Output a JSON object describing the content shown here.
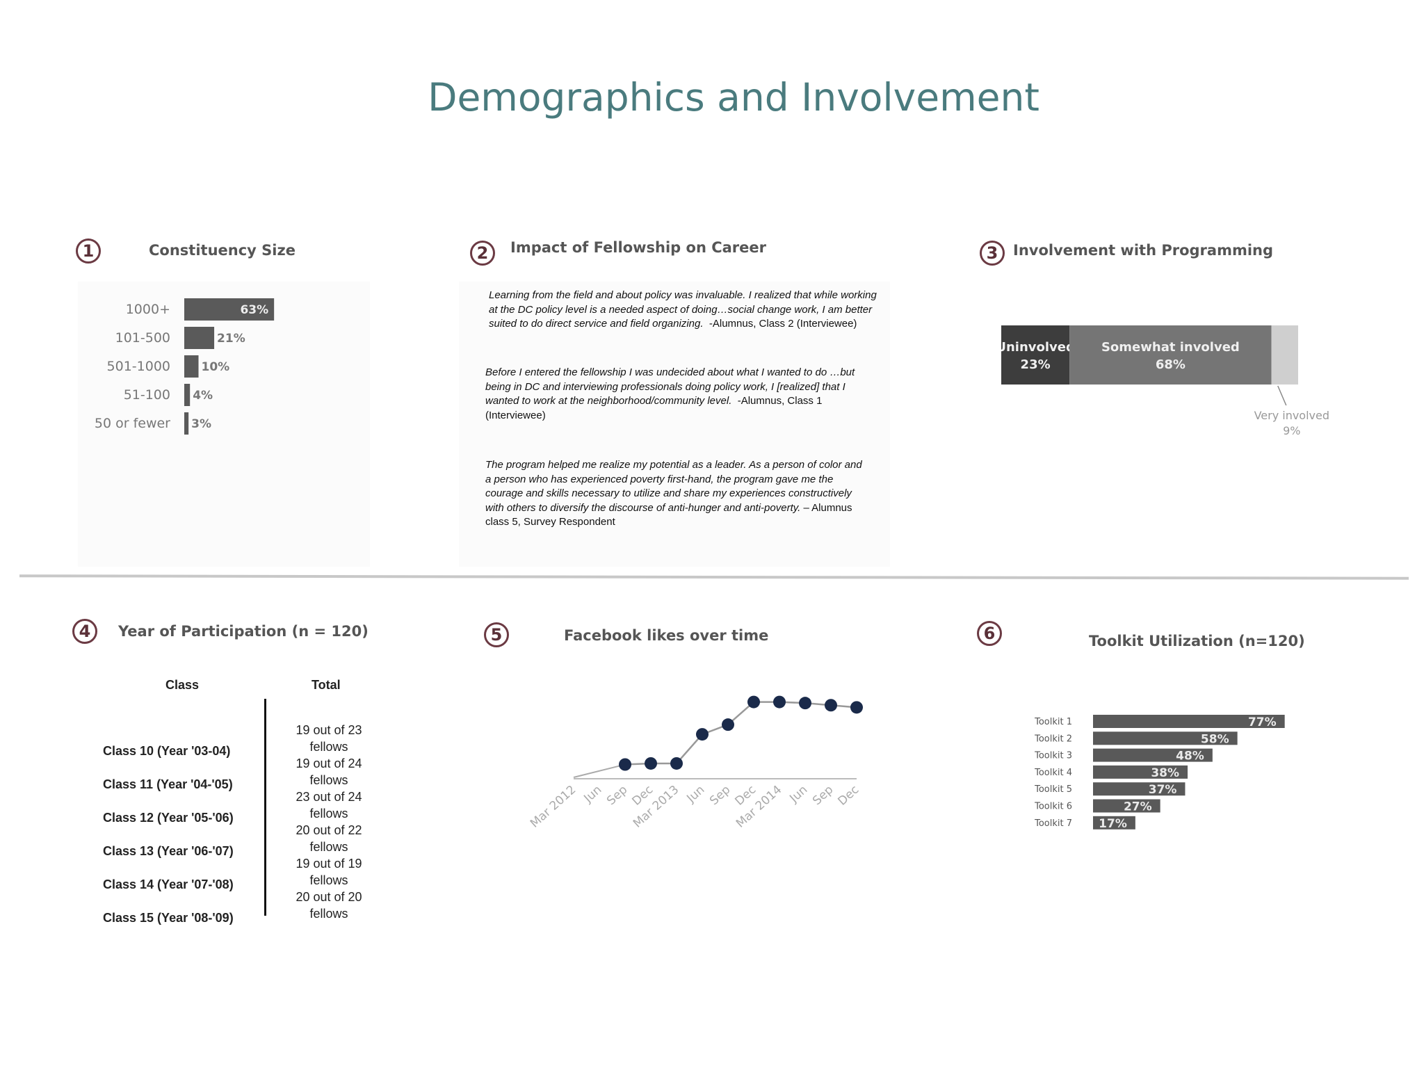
{
  "page": {
    "title": "Demographics and Involvement"
  },
  "panels": [
    {
      "number": "1",
      "title": "Constituency Size"
    },
    {
      "number": "2",
      "title": "Impact of Fellowship on Career"
    },
    {
      "number": "3",
      "title": "Involvement with Programming"
    },
    {
      "number": "4",
      "title": "Year of Participation (n = 120)"
    },
    {
      "number": "5",
      "title": "Facebook likes over time"
    },
    {
      "number": "6",
      "title": "Toolkit Utilization (n=120)"
    }
  ],
  "quotes": [
    {
      "text": "Learning from the field and about policy was invaluable.  I realized that while working at the DC policy level is a needed aspect of doing…social change work, I am better suited to do direct service and field organizing.",
      "attribution": "-Alumnus, Class 2 (Interviewee)"
    },
    {
      "text": "Before I entered the fellowship I was undecided about what I wanted to do …but being in DC and interviewing professionals doing policy work, I [realized] that I wanted to work at the neighborhood/community level.",
      "attribution": "-Alumnus, Class 1 (Interviewee)"
    },
    {
      "text": "The program helped me realize my potential as a leader. As a person of color and a person who has experienced poverty first-hand, the program gave me the courage and skills necessary to utilize and share my experiences constructively with others to diversify the discourse of anti-hunger and anti-poverty.",
      "attribution": "– Alumnus class 5, Survey Respondent"
    }
  ],
  "participation_table": {
    "headers": [
      "Class",
      "Total"
    ],
    "rows": [
      {
        "class": "Class 10 (Year '03-04)",
        "total": "19 out of 23 fellows"
      },
      {
        "class": "Class 11 (Year '04-'05)",
        "total": "19 out of 24 fellows"
      },
      {
        "class": "Class 12 (Year '05-'06)",
        "total": "23 out of 24 fellows"
      },
      {
        "class": "Class 13 (Year '06-'07)",
        "total": "20 out of 22 fellows"
      },
      {
        "class": "Class 14 (Year '07-'08)",
        "total": "19 out of 19 fellows"
      },
      {
        "class": "Class 15 (Year '08-'09)",
        "total": "20 out of 20 fellows"
      }
    ]
  },
  "colors": {
    "title": "#4a7b7e",
    "number_ring": "#6b3a43",
    "bar_dark": "#555555",
    "point": "#1a2a4a"
  },
  "chart_data": [
    {
      "type": "bar",
      "orientation": "horizontal",
      "title": "Constituency Size",
      "categories": [
        "1000+",
        "101-500",
        "501-1000",
        "51-100",
        "50 or fewer"
      ],
      "values": [
        63,
        21,
        10,
        4,
        3
      ],
      "labels": [
        "63%",
        "21%",
        "10%",
        "4%",
        "3%"
      ],
      "unit": "%",
      "grid": false
    },
    {
      "type": "bar",
      "orientation": "stacked-horizontal",
      "title": "Involvement with Programming",
      "series": [
        {
          "name": "Uninvolved",
          "value": 23,
          "label": "23%"
        },
        {
          "name": "Somewhat involved",
          "value": 68,
          "label": "68%"
        },
        {
          "name": "Very involved",
          "value": 9,
          "label": "9%"
        }
      ],
      "unit": "%"
    },
    {
      "type": "line",
      "title": "Facebook likes over time",
      "x": [
        "Mar 2012",
        "Jun",
        "Sep",
        "Dec",
        "Mar 2013",
        "Jun",
        "Sep",
        "Dec",
        "Mar 2014",
        "Jun",
        "Sep",
        "Dec"
      ],
      "values": [
        null,
        null,
        10,
        11,
        11,
        38,
        47,
        68,
        68,
        67,
        65,
        63
      ],
      "ylim": [
        0,
        80
      ],
      "grid": false
    },
    {
      "type": "bar",
      "orientation": "horizontal",
      "title": "Toolkit Utilization (n=120)",
      "categories": [
        "Toolkit 1",
        "Toolkit 2",
        "Toolkit 3",
        "Toolkit 4",
        "Toolkit 5",
        "Toolkit 6",
        "Toolkit 7"
      ],
      "values": [
        77,
        58,
        48,
        38,
        37,
        27,
        17
      ],
      "labels": [
        "77%",
        "58%",
        "48%",
        "38%",
        "37%",
        "27%",
        "17%"
      ],
      "unit": "%",
      "grid": false
    }
  ]
}
